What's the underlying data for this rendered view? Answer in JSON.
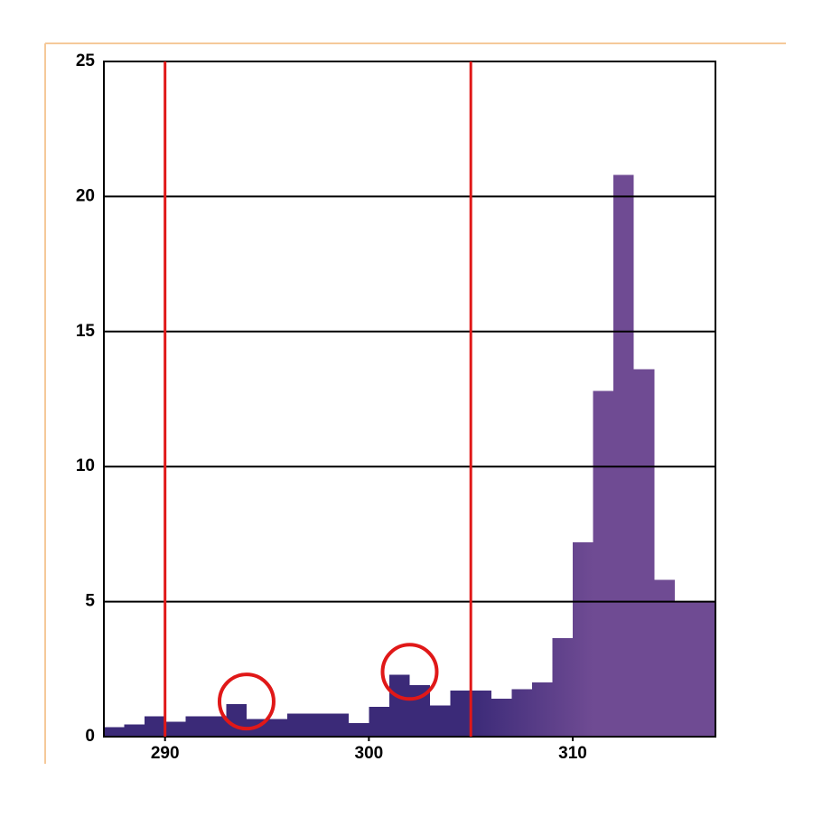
{
  "chart_data": {
    "type": "histogram",
    "bins": [
      287,
      288,
      289,
      290,
      291,
      292,
      293,
      294,
      295,
      296,
      297,
      298,
      299,
      300,
      301,
      302,
      303,
      304,
      305,
      306,
      307,
      308,
      309,
      310,
      311,
      312,
      313,
      314,
      315,
      316,
      317
    ],
    "values": [
      0.35,
      0.45,
      0.75,
      0.55,
      0.75,
      0.75,
      1.2,
      0.65,
      0.65,
      0.85,
      0.85,
      0.85,
      0.5,
      1.1,
      2.3,
      1.9,
      1.15,
      1.7,
      1.7,
      1.4,
      1.75,
      2.0,
      3.65,
      7.2,
      12.8,
      20.8,
      13.6,
      5.8,
      5.0,
      5.0
    ],
    "colors": [
      "#3b2a78",
      "#6f4b93"
    ],
    "xlim": [
      287,
      317
    ],
    "ylim": [
      0,
      25
    ],
    "xticks": [
      290,
      300,
      310
    ],
    "yticks": [
      0,
      5,
      10,
      15,
      20,
      25
    ],
    "grid": true,
    "vlines": [
      290,
      305
    ],
    "vline_color": "#e01818",
    "circles": [
      {
        "x": 294,
        "y": 1.3
      },
      {
        "x": 302,
        "y": 2.4
      }
    ],
    "circle_color": "#e01818"
  }
}
